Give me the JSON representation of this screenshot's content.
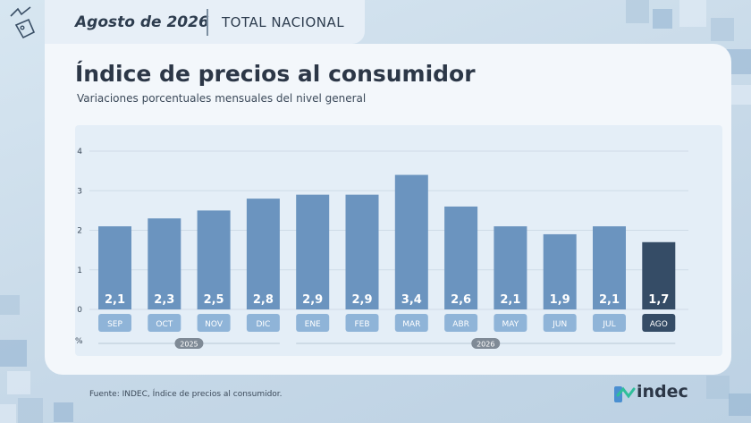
{
  "header": {
    "date": "Agosto de 2026",
    "scope": "TOTAL NACIONAL"
  },
  "colors": {
    "bar": "#6b94bf",
    "bar_highlight": "#354c66",
    "label_bg": "#8fb4d8",
    "label_bg_highlight": "#354c66"
  },
  "chart_data": {
    "type": "bar",
    "title": "Índice de precios al consumidor",
    "subtitle": "Variaciones porcentuales mensuales del nivel general",
    "ylabel": "%",
    "ylim": [
      0,
      4
    ],
    "yticks": [
      "0",
      "1",
      "2",
      "3",
      "4"
    ],
    "grid": true,
    "categories": [
      "SEP",
      "OCT",
      "NOV",
      "DIC",
      "ENE",
      "FEB",
      "MAR",
      "ABR",
      "MAY",
      "JUN",
      "JUL",
      "AGO"
    ],
    "values": [
      2.1,
      2.3,
      2.5,
      2.8,
      2.9,
      2.9,
      3.4,
      2.6,
      2.1,
      1.9,
      2.1,
      1.7
    ],
    "value_labels": [
      "2,1",
      "2,3",
      "2,5",
      "2,8",
      "2,9",
      "2,9",
      "3,4",
      "2,6",
      "2,1",
      "1,9",
      "2,1",
      "1,7"
    ],
    "highlight": "AGO",
    "year_groups": [
      {
        "label": "2025",
        "start": 0,
        "end": 3
      },
      {
        "label": "2026",
        "start": 4,
        "end": 11
      }
    ]
  },
  "footer": {
    "source": "Fuente: INDEC, Índice de precios al consumidor.",
    "logo_text": "indec"
  }
}
